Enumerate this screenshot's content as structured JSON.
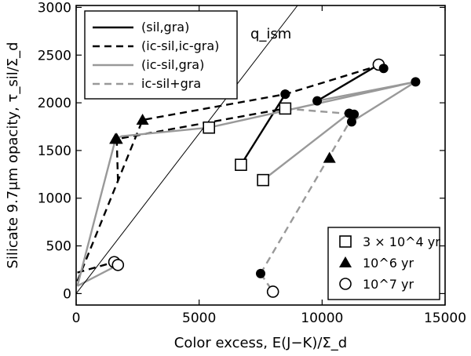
{
  "chart_data": {
    "type": "line",
    "xlabel": "Color excess, E(J−K)/Σ_d",
    "ylabel": "Silicate 9.7μm opacity, τ_sil/Σ_d",
    "xlim": [
      0,
      15000
    ],
    "ylim": [
      -120,
      3020
    ],
    "x_ticks": [
      0,
      5000,
      10000,
      15000
    ],
    "x_tick_labels": [
      "0",
      "5000",
      "10000",
      "15000"
    ],
    "y_ticks": [
      0,
      500,
      1000,
      1500,
      2000,
      2500,
      3000
    ],
    "y_tick_labels": [
      "0",
      "500",
      "1000",
      "1500",
      "2000",
      "2500",
      "3000"
    ],
    "grid": false,
    "reference_line": {
      "label": "q_ism",
      "x": [
        0,
        9000
      ],
      "y": [
        0,
        3020
      ]
    },
    "line_legend": {
      "placement": "top-left",
      "entries": [
        {
          "label": "(sil,gra)",
          "color": "#000000",
          "style": "solid"
        },
        {
          "label": "(ic-sil,ic-gra)",
          "color": "#000000",
          "style": "dashed"
        },
        {
          "label": "(ic-sil,gra)",
          "color": "#999999",
          "style": "solid"
        },
        {
          "label": "ic-sil+gra",
          "color": "#999999",
          "style": "dashed"
        }
      ]
    },
    "marker_legend": {
      "placement": "bottom-right",
      "entries": [
        {
          "marker": "square",
          "label": "3 × 10^4 yr"
        },
        {
          "marker": "triangle",
          "label": "10^6 yr"
        },
        {
          "marker": "circle",
          "label": "10^7 yr"
        }
      ]
    },
    "series": [
      {
        "name": "(sil,gra)",
        "color": "#000000",
        "style": "solid",
        "segments": [
          [
            {
              "x": 6700,
              "y": 1350,
              "m": "square"
            },
            {
              "x": 8500,
              "y": 2090,
              "m": "filledcircle"
            }
          ],
          [
            {
              "x": 9800,
              "y": 2020,
              "m": "filledcircle"
            },
            {
              "x": 12300,
              "y": 2400,
              "m": "opencircle"
            },
            {
              "x": 12500,
              "y": 2360,
              "m": "filledcircle"
            }
          ]
        ]
      },
      {
        "name": "(ic-sil,ic-gra)",
        "color": "#000000",
        "style": "dashed",
        "segments": [
          [
            {
              "x": 50,
              "y": 130
            },
            {
              "x": 2700,
              "y": 1820,
              "m": "triangle"
            },
            {
              "x": 8500,
              "y": 2090,
              "m": "filledcircle"
            },
            {
              "x": 12300,
              "y": 2390
            }
          ],
          [
            {
              "x": 1700,
              "y": 1180
            },
            {
              "x": 1650,
              "y": 1620,
              "m": "triangle"
            },
            {
              "x": 8500,
              "y": 1940,
              "m": "square"
            }
          ],
          [
            {
              "x": 50,
              "y": 220
            },
            {
              "x": 1550,
              "y": 330,
              "m": "opencircle"
            }
          ]
        ]
      },
      {
        "name": "(ic-sil,gra)",
        "color": "#999999",
        "style": "solid",
        "segments": [
          [
            {
              "x": 50,
              "y": 80
            },
            {
              "x": 1700,
              "y": 300,
              "m": "opencircle"
            }
          ],
          [
            {
              "x": 50,
              "y": 80
            },
            {
              "x": 1600,
              "y": 1620,
              "m": "triangle"
            },
            {
              "x": 1850,
              "y": 1650
            },
            {
              "x": 5400,
              "y": 1740,
              "m": "square"
            },
            {
              "x": 13800,
              "y": 2220,
              "m": "filledcircle"
            }
          ],
          [
            {
              "x": 7600,
              "y": 1190,
              "m": "square"
            },
            {
              "x": 11100,
              "y": 1890,
              "m": "filledcircle"
            }
          ],
          [
            {
              "x": 11200,
              "y": 1800,
              "m": "filledcircle"
            },
            {
              "x": 13800,
              "y": 2220
            }
          ],
          [
            {
              "x": 9800,
              "y": 2020
            },
            {
              "x": 13800,
              "y": 2220
            }
          ]
        ]
      },
      {
        "name": "ic-sil+gra",
        "color": "#999999",
        "style": "dashed",
        "segments": [
          [
            {
              "x": 7500,
              "y": 210,
              "m": "filledcircle"
            },
            {
              "x": 8000,
              "y": 20,
              "m": "opencircle"
            }
          ],
          [
            {
              "x": 7500,
              "y": 210
            },
            {
              "x": 11300,
              "y": 1880,
              "m": "filledcircle"
            }
          ],
          [
            {
              "x": 8500,
              "y": 1940
            },
            {
              "x": 11300,
              "y": 1880
            }
          ]
        ]
      }
    ],
    "standalone_markers": [
      {
        "x": 10300,
        "y": 1420,
        "m": "triangle"
      }
    ]
  }
}
